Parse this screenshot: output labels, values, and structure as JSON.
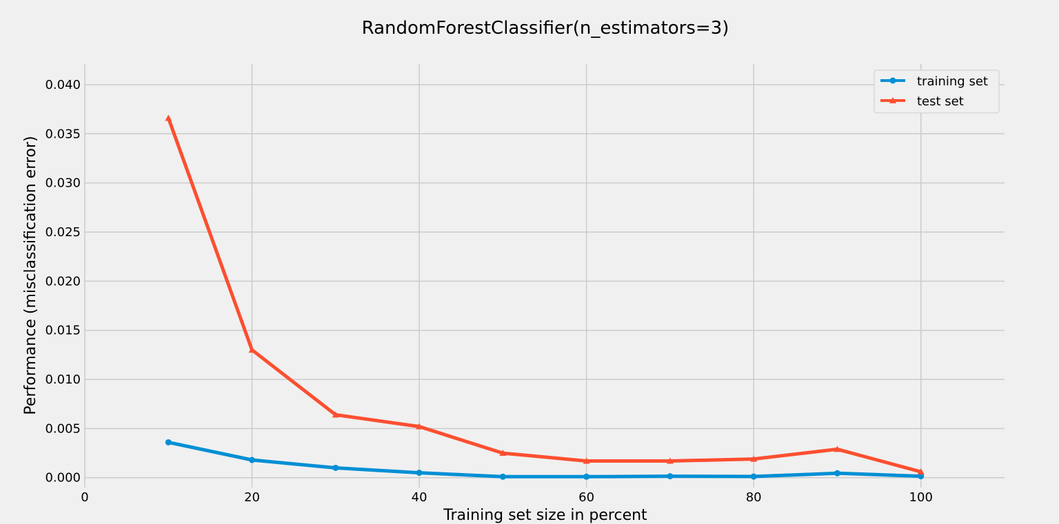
{
  "chart_data": {
    "type": "line",
    "title": "RandomForestClassifier(n_estimators=3)",
    "xlabel": "Training set size in percent",
    "ylabel": "Performance (misclassification error)",
    "xlim": [
      0,
      110
    ],
    "ylim": [
      -0.001,
      0.0421
    ],
    "xticks": [
      0,
      20,
      40,
      60,
      80,
      100
    ],
    "yticks": [
      0.0,
      0.005,
      0.01,
      0.015,
      0.02,
      0.025,
      0.03,
      0.035,
      0.04
    ],
    "ytick_labels": [
      "0.000",
      "0.005",
      "0.010",
      "0.015",
      "0.020",
      "0.025",
      "0.030",
      "0.035",
      "0.040"
    ],
    "xtick_labels": [
      "0",
      "20",
      "40",
      "60",
      "80",
      "100"
    ],
    "grid": true,
    "legend_position": "top-right",
    "x": [
      10,
      20,
      30,
      40,
      50,
      60,
      70,
      80,
      90,
      100
    ],
    "series": [
      {
        "name": "training set",
        "color": "#008fd5",
        "marker": "circle",
        "values": [
          0.0036,
          0.0018,
          0.001,
          0.0005,
          0.0001,
          0.0001,
          0.00015,
          0.00012,
          0.00045,
          0.00015
        ]
      },
      {
        "name": "test set",
        "color": "#fc4f30",
        "marker": "triangle",
        "values": [
          0.0366,
          0.013,
          0.0064,
          0.0052,
          0.0025,
          0.0017,
          0.0017,
          0.0019,
          0.0029,
          0.0006
        ]
      }
    ]
  }
}
